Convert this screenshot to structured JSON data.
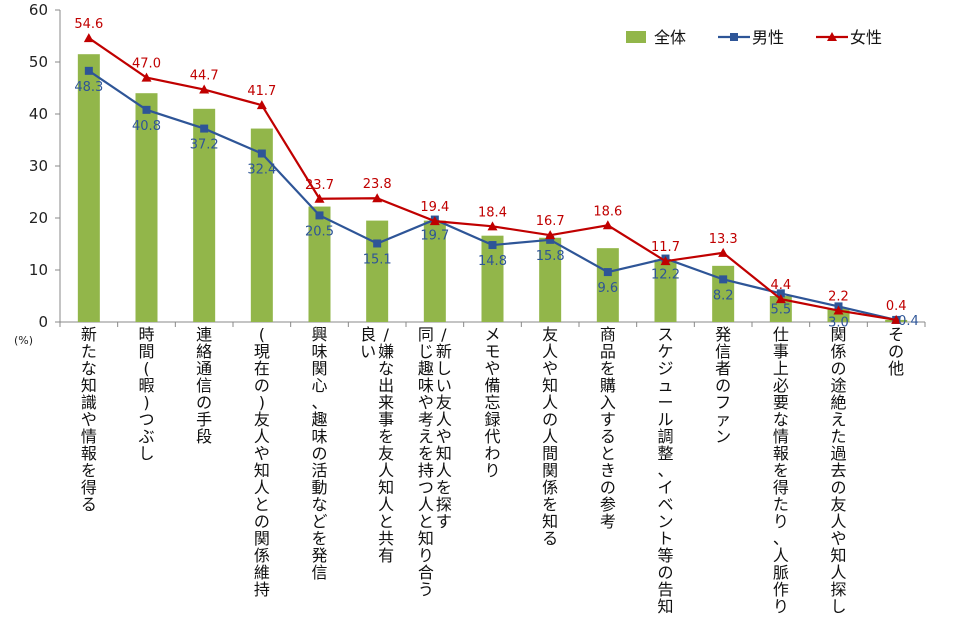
{
  "chart_data": {
    "type": "bar",
    "title": "",
    "ylabel": "",
    "y_unit": "(%)",
    "ylim": [
      0,
      60
    ],
    "yticks": [
      0,
      10,
      20,
      30,
      40,
      50,
      60
    ],
    "categories": [
      "新たな知識や情報を得る",
      "時間(暇)つぶし",
      "連絡通信の手段",
      "(現在の)友人や知人との関係維持",
      "興味関心、趣味の活動などを発信",
      "良い/嫌な出来事を友人知人と共有",
      "同じ趣味や考えを持つ人と知り合う/新しい友人や知人を探す",
      "メモや備忘録代わり",
      "友人や知人の人間関係を知る",
      "商品を購入するときの参考",
      "スケジュール調整、イベント等の告知",
      "発信者のファン",
      "仕事上必要な情報を得たり、人脈作り",
      "関係の途絶えた過去の友人や知人探し",
      "その他"
    ],
    "series": [
      {
        "name": "全体",
        "kind": "bar",
        "color": "#92b64a",
        "values": [
          51.5,
          44.0,
          41.0,
          37.2,
          22.2,
          19.5,
          19.5,
          16.6,
          16.2,
          14.2,
          12.0,
          10.8,
          5.0,
          2.6,
          0.4
        ]
      },
      {
        "name": "男性",
        "kind": "line",
        "color": "#2e5597",
        "marker": "square",
        "values": [
          48.3,
          40.8,
          37.2,
          32.4,
          20.5,
          15.1,
          19.7,
          14.8,
          15.8,
          9.6,
          12.2,
          8.2,
          5.5,
          3.0,
          0.4
        ]
      },
      {
        "name": "女性",
        "kind": "line",
        "color": "#c00000",
        "marker": "triangle",
        "values": [
          54.6,
          47.0,
          44.7,
          41.7,
          23.7,
          23.8,
          19.4,
          18.4,
          16.7,
          18.6,
          11.7,
          13.3,
          4.4,
          2.2,
          0.4
        ]
      }
    ],
    "data_labels": {
      "男性": [
        "48.3",
        "40.8",
        "37.2",
        "32.4",
        "20.5",
        "15.1",
        "19.7",
        "14.8",
        "15.8",
        "9.6",
        "12.2",
        "8.2",
        "5.5",
        "3.0",
        "0.4"
      ],
      "女性": [
        "54.6",
        "47.0",
        "44.7",
        "41.7",
        "23.7",
        "23.8",
        "19.4",
        "18.4",
        "16.7",
        "18.6",
        "11.7",
        "13.3",
        "4.4",
        "2.2",
        "0.4"
      ]
    },
    "legend": {
      "placement": "top-right",
      "entries": [
        "全体",
        "男性",
        "女性"
      ]
    }
  }
}
